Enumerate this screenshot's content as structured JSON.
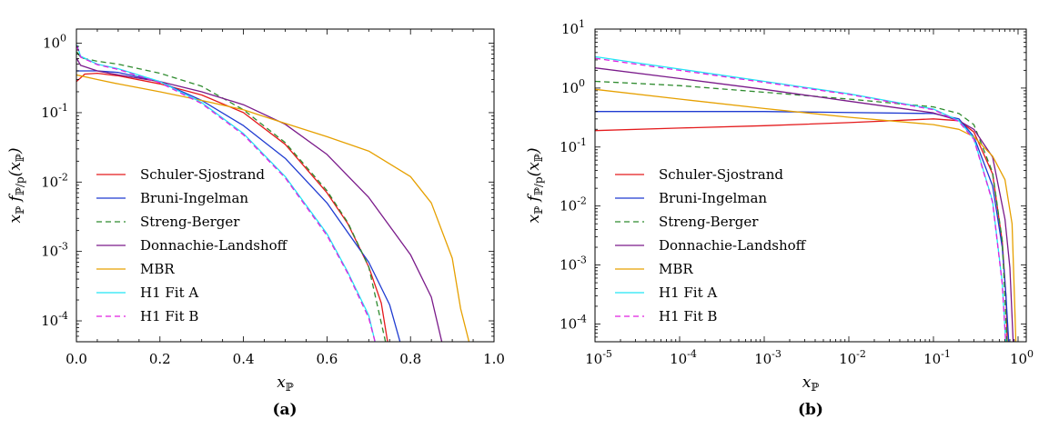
{
  "chart_data": [
    {
      "type": "line",
      "caption": "(a)",
      "xlabel": "x_P",
      "ylabel": "x_P f_P/p(x_P)",
      "xscale": "linear",
      "yscale": "log",
      "xlim": [
        0,
        1
      ],
      "ylim": [
        5e-05,
        1.6
      ],
      "xticks": [
        "0.0",
        "0.2",
        "0.4",
        "0.6",
        "0.8",
        "1.0"
      ],
      "yticks": [
        {
          "base": "10",
          "exp": "0",
          "v": 1
        },
        {
          "base": "10",
          "exp": "-1",
          "v": 0.1
        },
        {
          "base": "10",
          "exp": "-2",
          "v": 0.01
        },
        {
          "base": "10",
          "exp": "-3",
          "v": 0.001
        },
        {
          "base": "10",
          "exp": "-4",
          "v": 0.0001
        }
      ],
      "legend_position": "lower-left",
      "series": [
        {
          "name": "Schuler-Sjostrand",
          "color": "#e41a1c",
          "dash": "",
          "x": [
            0.0,
            0.02,
            0.05,
            0.1,
            0.2,
            0.3,
            0.4,
            0.5,
            0.6,
            0.65,
            0.7,
            0.73,
            0.745
          ],
          "y": [
            0.28,
            0.36,
            0.37,
            0.34,
            0.26,
            0.18,
            0.1,
            0.035,
            0.007,
            0.0025,
            0.0006,
            0.00018,
            5e-05
          ]
        },
        {
          "name": "Bruni-Ingelman",
          "color": "#1f3bd1",
          "dash": "",
          "x": [
            0.0,
            0.05,
            0.1,
            0.2,
            0.3,
            0.4,
            0.5,
            0.6,
            0.7,
            0.75,
            0.775
          ],
          "y": [
            0.4,
            0.4,
            0.38,
            0.28,
            0.15,
            0.065,
            0.022,
            0.005,
            0.0007,
            0.00017,
            5e-05
          ]
        },
        {
          "name": "Streng-Berger",
          "color": "#2e8b2e",
          "dash": "6,4",
          "x": [
            0.001,
            0.01,
            0.05,
            0.1,
            0.2,
            0.3,
            0.4,
            0.5,
            0.6,
            0.65,
            0.7,
            0.74
          ],
          "y": [
            0.75,
            0.62,
            0.55,
            0.5,
            0.37,
            0.24,
            0.11,
            0.037,
            0.0075,
            0.0026,
            0.0006,
            5e-05
          ]
        },
        {
          "name": "Donnachie-Landshoff",
          "color": "#7a1a8a",
          "dash": "",
          "x": [
            0.001,
            0.01,
            0.05,
            0.1,
            0.2,
            0.3,
            0.4,
            0.5,
            0.6,
            0.7,
            0.8,
            0.85,
            0.875
          ],
          "y": [
            0.6,
            0.48,
            0.4,
            0.35,
            0.28,
            0.2,
            0.13,
            0.068,
            0.025,
            0.006,
            0.0009,
            0.00022,
            5e-05
          ]
        },
        {
          "name": "MBR",
          "color": "#e6a000",
          "dash": "",
          "x": [
            0.0,
            0.05,
            0.1,
            0.2,
            0.3,
            0.4,
            0.5,
            0.6,
            0.7,
            0.8,
            0.85,
            0.9,
            0.92,
            0.94
          ],
          "y": [
            0.35,
            0.3,
            0.26,
            0.2,
            0.15,
            0.11,
            0.07,
            0.045,
            0.028,
            0.012,
            0.005,
            0.0008,
            0.00015,
            5e-05
          ]
        },
        {
          "name": "H1 Fit A",
          "color": "#22e5f5",
          "dash": "",
          "x": [
            0.001,
            0.01,
            0.05,
            0.1,
            0.2,
            0.3,
            0.4,
            0.5,
            0.6,
            0.65,
            0.7,
            0.715
          ],
          "y": [
            0.95,
            0.65,
            0.5,
            0.43,
            0.28,
            0.14,
            0.05,
            0.012,
            0.0018,
            0.0005,
            0.00012,
            5e-05
          ]
        },
        {
          "name": "H1 Fit B",
          "color": "#e020e0",
          "dash": "6,4",
          "x": [
            0.001,
            0.01,
            0.05,
            0.1,
            0.2,
            0.3,
            0.4,
            0.5,
            0.6,
            0.65,
            0.7,
            0.715
          ],
          "y": [
            0.92,
            0.63,
            0.49,
            0.42,
            0.27,
            0.135,
            0.048,
            0.0115,
            0.0017,
            0.00048,
            0.00011,
            5e-05
          ]
        }
      ]
    },
    {
      "type": "line",
      "caption": "(b)",
      "xlabel": "x_P",
      "ylabel": "x_P f_P/p(x_P)",
      "xscale": "log",
      "yscale": "log",
      "xlim": [
        1e-05,
        1.25
      ],
      "ylim": [
        5e-05,
        10
      ],
      "xticks": [
        {
          "base": "10",
          "exp": "-5",
          "v": 1e-05
        },
        {
          "base": "10",
          "exp": "-4",
          "v": 0.0001
        },
        {
          "base": "10",
          "exp": "-3",
          "v": 0.001
        },
        {
          "base": "10",
          "exp": "-2",
          "v": 0.01
        },
        {
          "base": "10",
          "exp": "-1",
          "v": 0.1
        },
        {
          "base": "10",
          "exp": "0",
          "v": 1
        }
      ],
      "yticks": [
        {
          "base": "10",
          "exp": "1",
          "v": 10
        },
        {
          "base": "10",
          "exp": "0",
          "v": 1
        },
        {
          "base": "10",
          "exp": "-1",
          "v": 0.1
        },
        {
          "base": "10",
          "exp": "-2",
          "v": 0.01
        },
        {
          "base": "10",
          "exp": "-3",
          "v": 0.001
        },
        {
          "base": "10",
          "exp": "-4",
          "v": 0.0001
        }
      ],
      "legend_position": "lower-left",
      "series": [
        {
          "name": "Schuler-Sjostrand",
          "color": "#e41a1c",
          "dash": "",
          "x": [
            1e-05,
            0.0001,
            0.001,
            0.01,
            0.1,
            0.2,
            0.3,
            0.5,
            0.65,
            0.72,
            0.745
          ],
          "y": [
            0.19,
            0.21,
            0.23,
            0.26,
            0.3,
            0.28,
            0.18,
            0.035,
            0.0025,
            0.0003,
            5e-05
          ]
        },
        {
          "name": "Bruni-Ingelman",
          "color": "#1f3bd1",
          "dash": "",
          "x": [
            1e-05,
            0.001,
            0.1,
            0.2,
            0.3,
            0.5,
            0.65,
            0.72,
            0.775
          ],
          "y": [
            0.4,
            0.4,
            0.37,
            0.3,
            0.15,
            0.022,
            0.002,
            0.0003,
            5e-05
          ]
        },
        {
          "name": "Streng-Berger",
          "color": "#2e8b2e",
          "dash": "6,4",
          "x": [
            1e-05,
            0.0001,
            0.001,
            0.01,
            0.1,
            0.2,
            0.3,
            0.5,
            0.65,
            0.74
          ],
          "y": [
            1.3,
            1.1,
            0.85,
            0.65,
            0.48,
            0.37,
            0.24,
            0.037,
            0.0026,
            5e-05
          ]
        },
        {
          "name": "Donnachie-Landshoff",
          "color": "#7a1a8a",
          "dash": "",
          "x": [
            1e-05,
            0.0001,
            0.001,
            0.01,
            0.1,
            0.2,
            0.3,
            0.5,
            0.7,
            0.8,
            0.875
          ],
          "y": [
            2.2,
            1.45,
            0.95,
            0.6,
            0.38,
            0.28,
            0.2,
            0.068,
            0.006,
            0.0009,
            5e-05
          ]
        },
        {
          "name": "MBR",
          "color": "#e6a000",
          "dash": "",
          "x": [
            1e-05,
            0.0001,
            0.001,
            0.01,
            0.1,
            0.2,
            0.3,
            0.5,
            0.7,
            0.85,
            0.92,
            0.94
          ],
          "y": [
            0.95,
            0.65,
            0.45,
            0.32,
            0.24,
            0.2,
            0.15,
            0.07,
            0.028,
            0.005,
            0.00015,
            5e-05
          ]
        },
        {
          "name": "H1 Fit A",
          "color": "#22e5f5",
          "dash": "",
          "x": [
            1e-05,
            0.0001,
            0.001,
            0.01,
            0.1,
            0.2,
            0.3,
            0.5,
            0.65,
            0.715
          ],
          "y": [
            3.4,
            2.1,
            1.3,
            0.8,
            0.44,
            0.28,
            0.14,
            0.012,
            0.0005,
            5e-05
          ]
        },
        {
          "name": "H1 Fit B",
          "color": "#e020e0",
          "dash": "6,4",
          "x": [
            1e-05,
            0.0001,
            0.001,
            0.01,
            0.1,
            0.2,
            0.3,
            0.5,
            0.65,
            0.715
          ],
          "y": [
            3.2,
            2.0,
            1.25,
            0.78,
            0.43,
            0.27,
            0.135,
            0.0115,
            0.00048,
            5e-05
          ]
        }
      ]
    }
  ]
}
